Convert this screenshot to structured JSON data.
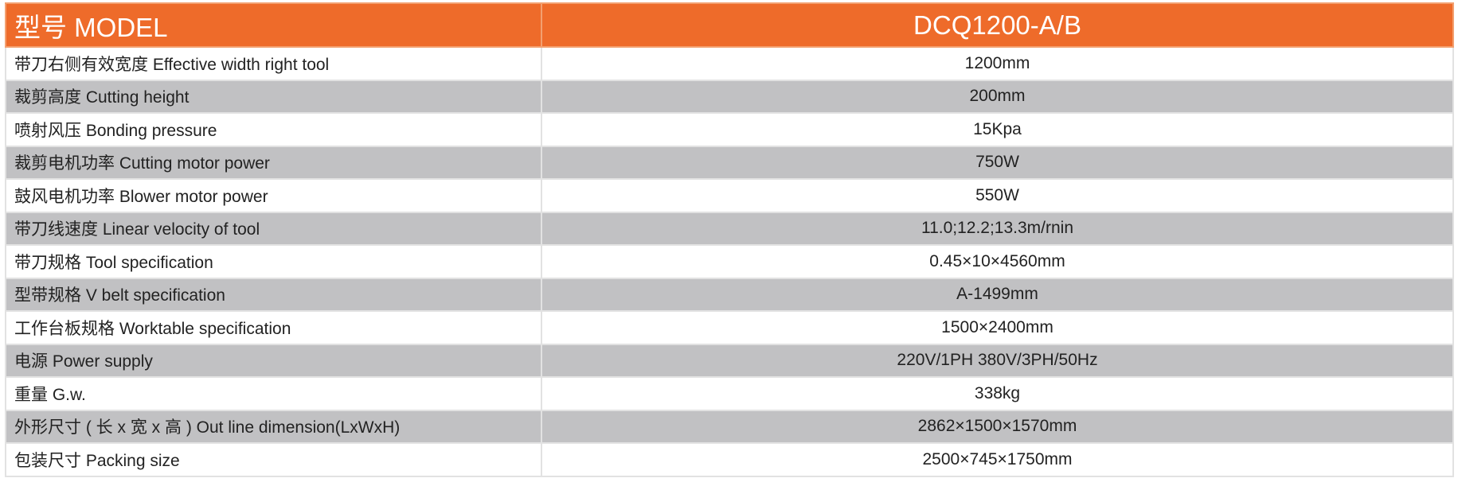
{
  "table": {
    "header": [
      "型号 MODEL",
      "DCQ1200-A/B"
    ],
    "rows": [
      [
        "带刀右侧有效宽度 Effective width right tool",
        "1200mm"
      ],
      [
        "裁剪高度 Cutting height",
        "200mm"
      ],
      [
        "喷射风压 Bonding pressure",
        "15Kpa"
      ],
      [
        "裁剪电机功率 Cutting motor power",
        "750W"
      ],
      [
        "鼓风电机功率 Blower motor power",
        "550W"
      ],
      [
        "带刀线速度 Linear velocity of tool",
        "11.0;12.2;13.3m/rnin"
      ],
      [
        "带刀规格 Tool specification",
        "0.45×10×4560mm"
      ],
      [
        "型带规格 V belt specification",
        "A-1499mm"
      ],
      [
        "工作台板规格 Worktable specification",
        "1500×2400mm"
      ],
      [
        "电源 Power supply",
        "220V/1PH 380V/3PH/50Hz"
      ],
      [
        "重量 G.w.",
        "338kg"
      ],
      [
        "外形尺寸 ( 长 x 宽 x 高 ) Out line dimension(LxWxH)",
        "2862×1500×1570mm"
      ],
      [
        "包装尺寸 Packing size",
        "2500×745×1750mm"
      ]
    ]
  }
}
